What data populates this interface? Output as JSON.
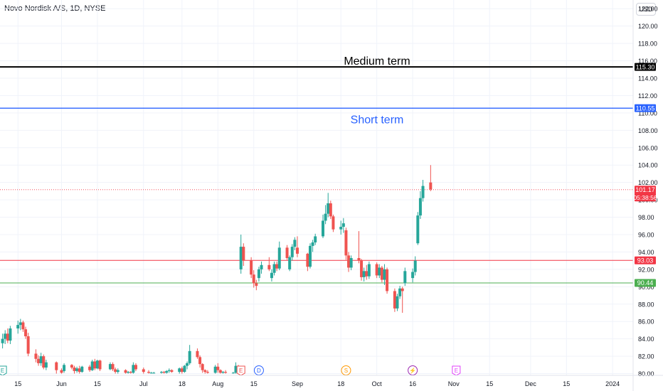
{
  "header": {
    "title": "Novo Nordisk A/S, 1D, NYSE",
    "currency_button": "USD"
  },
  "colors": {
    "up": "#26a69a",
    "down": "#ef5350",
    "grid": "#f0f3fa",
    "axis_text": "#131722",
    "medium": "#000000",
    "short": "#2962ff",
    "resistance": "#f23645",
    "support": "#4caf50"
  },
  "chart_data": {
    "type": "candlestick",
    "title": "Novo Nordisk A/S, 1D, NYSE",
    "currency": "USD",
    "ylim": [
      79.8,
      123.0
    ],
    "y_ticks": [
      "80.00",
      "82.00",
      "84.00",
      "86.00",
      "88.00",
      "90.00",
      "92.00",
      "94.00",
      "96.00",
      "98.00",
      "100.00",
      "102.00",
      "104.00",
      "106.00",
      "108.00",
      "110.00",
      "112.00",
      "114.00",
      "116.00",
      "118.00",
      "120.00",
      "122.00"
    ],
    "x_ticks": [
      {
        "label": "15",
        "date": "2023-05-15"
      },
      {
        "label": "Jun",
        "date": "2023-06-01"
      },
      {
        "label": "15",
        "date": "2023-06-15"
      },
      {
        "label": "Jul",
        "date": "2023-07-03"
      },
      {
        "label": "18",
        "date": "2023-07-18"
      },
      {
        "label": "Aug",
        "date": "2023-08-01"
      },
      {
        "label": "15",
        "date": "2023-08-15"
      },
      {
        "label": "Sep",
        "date": "2023-09-01"
      },
      {
        "label": "18",
        "date": "2023-09-18"
      },
      {
        "label": "Oct",
        "date": "2023-10-02"
      },
      {
        "label": "16",
        "date": "2023-10-16"
      },
      {
        "label": "Nov",
        "date": "2023-11-01"
      },
      {
        "label": "15",
        "date": "2023-11-15"
      },
      {
        "label": "Dec",
        "date": "2023-12-01"
      },
      {
        "label": "15",
        "date": "2023-12-15"
      },
      {
        "label": "2024",
        "date": "2024-01-02"
      }
    ],
    "candles": [
      {
        "d": "2023-05-09",
        "o": 83.5,
        "h": 84.6,
        "l": 82.9,
        "c": 84.0
      },
      {
        "d": "2023-05-10",
        "o": 84.0,
        "h": 85.0,
        "l": 83.4,
        "c": 84.6
      },
      {
        "d": "2023-05-11",
        "o": 84.6,
        "h": 85.2,
        "l": 83.5,
        "c": 83.8
      },
      {
        "d": "2023-05-12",
        "o": 83.8,
        "h": 85.5,
        "l": 83.4,
        "c": 85.2
      },
      {
        "d": "2023-05-15",
        "o": 85.2,
        "h": 86.1,
        "l": 84.6,
        "c": 85.6
      },
      {
        "d": "2023-05-16",
        "o": 85.6,
        "h": 86.3,
        "l": 85.0,
        "c": 85.9
      },
      {
        "d": "2023-05-17",
        "o": 85.9,
        "h": 86.1,
        "l": 84.8,
        "c": 85.1
      },
      {
        "d": "2023-05-18",
        "o": 85.1,
        "h": 85.4,
        "l": 84.0,
        "c": 84.3
      },
      {
        "d": "2023-05-19",
        "o": 84.3,
        "h": 84.7,
        "l": 82.0,
        "c": 82.3
      },
      {
        "d": "2023-05-22",
        "o": 82.3,
        "h": 82.8,
        "l": 81.3,
        "c": 81.7
      },
      {
        "d": "2023-05-23",
        "o": 81.7,
        "h": 82.1,
        "l": 80.9,
        "c": 81.2
      },
      {
        "d": "2023-05-24",
        "o": 81.2,
        "h": 82.4,
        "l": 80.9,
        "c": 82.0
      },
      {
        "d": "2023-05-25",
        "o": 82.0,
        "h": 82.2,
        "l": 80.5,
        "c": 80.7
      },
      {
        "d": "2023-05-26",
        "o": 80.7,
        "h": 81.6,
        "l": 80.4,
        "c": 81.3
      },
      {
        "d": "2023-05-30",
        "o": 81.3,
        "h": 81.4,
        "l": 80.0,
        "c": 80.4
      },
      {
        "d": "2023-06-01",
        "o": 80.4,
        "h": 80.6,
        "l": 80.0,
        "c": 80.1
      },
      {
        "d": "2023-06-02",
        "o": 80.3,
        "h": 81.2,
        "l": 80.1,
        "c": 81.0
      },
      {
        "d": "2023-06-05",
        "o": 81.0,
        "h": 81.1,
        "l": 80.5,
        "c": 80.7
      },
      {
        "d": "2023-06-06",
        "o": 80.7,
        "h": 80.9,
        "l": 80.0,
        "c": 80.3
      },
      {
        "d": "2023-06-07",
        "o": 80.3,
        "h": 80.8,
        "l": 80.1,
        "c": 80.6
      },
      {
        "d": "2023-06-08",
        "o": 80.6,
        "h": 80.9,
        "l": 80.0,
        "c": 80.2
      },
      {
        "d": "2023-06-09",
        "o": 80.2,
        "h": 80.9,
        "l": 80.1,
        "c": 80.8
      },
      {
        "d": "2023-06-12",
        "o": 80.8,
        "h": 81.0,
        "l": 80.2,
        "c": 80.4
      },
      {
        "d": "2023-06-13",
        "o": 80.4,
        "h": 81.6,
        "l": 80.3,
        "c": 81.4
      },
      {
        "d": "2023-06-14",
        "o": 81.4,
        "h": 81.7,
        "l": 80.4,
        "c": 80.6
      },
      {
        "d": "2023-06-15",
        "o": 80.6,
        "h": 81.6,
        "l": 80.5,
        "c": 81.5
      },
      {
        "d": "2023-06-16",
        "o": 81.5,
        "h": 81.6,
        "l": 80.3,
        "c": 80.5
      },
      {
        "d": "2023-06-20",
        "o": 80.5,
        "h": 81.3,
        "l": 80.4,
        "c": 81.1
      },
      {
        "d": "2023-06-21",
        "o": 81.1,
        "h": 81.3,
        "l": 80.3,
        "c": 80.5
      },
      {
        "d": "2023-06-22",
        "o": 80.5,
        "h": 80.7,
        "l": 80.0,
        "c": 80.2
      },
      {
        "d": "2023-06-23",
        "o": 80.2,
        "h": 80.6,
        "l": 80.0,
        "c": 80.4
      },
      {
        "d": "2023-06-26",
        "o": 80.4,
        "h": 80.5,
        "l": 80.0,
        "c": 80.1
      },
      {
        "d": "2023-06-27",
        "o": 80.1,
        "h": 80.3,
        "l": 80.0,
        "c": 80.2
      },
      {
        "d": "2023-06-28",
        "o": 80.2,
        "h": 80.3,
        "l": 80.0,
        "c": 80.1
      },
      {
        "d": "2023-06-29",
        "o": 80.1,
        "h": 81.3,
        "l": 80.0,
        "c": 81.0
      },
      {
        "d": "2023-06-30",
        "o": 81.0,
        "h": 81.2,
        "l": 80.3,
        "c": 80.5
      },
      {
        "d": "2023-07-03",
        "o": 80.5,
        "h": 80.7,
        "l": 80.0,
        "c": 80.2
      },
      {
        "d": "2023-07-05",
        "o": 80.2,
        "h": 80.4,
        "l": 80.0,
        "c": 80.1
      },
      {
        "d": "2023-07-06",
        "o": 80.1,
        "h": 80.2,
        "l": 80.0,
        "c": 80.1
      },
      {
        "d": "2023-07-07",
        "o": 80.1,
        "h": 80.2,
        "l": 80.0,
        "c": 80.1
      },
      {
        "d": "2023-07-10",
        "o": 80.1,
        "h": 80.3,
        "l": 80.0,
        "c": 80.2
      },
      {
        "d": "2023-07-11",
        "o": 80.2,
        "h": 80.3,
        "l": 80.0,
        "c": 80.1
      },
      {
        "d": "2023-07-12",
        "o": 80.1,
        "h": 80.4,
        "l": 80.0,
        "c": 80.3
      },
      {
        "d": "2023-07-13",
        "o": 80.3,
        "h": 80.6,
        "l": 80.1,
        "c": 80.4
      },
      {
        "d": "2023-07-14",
        "o": 80.4,
        "h": 80.5,
        "l": 80.1,
        "c": 80.2
      },
      {
        "d": "2023-07-17",
        "o": 80.2,
        "h": 80.7,
        "l": 80.0,
        "c": 80.6
      },
      {
        "d": "2023-07-18",
        "o": 80.6,
        "h": 80.8,
        "l": 80.0,
        "c": 80.2
      },
      {
        "d": "2023-07-19",
        "o": 80.2,
        "h": 81.0,
        "l": 80.1,
        "c": 80.9
      },
      {
        "d": "2023-07-20",
        "o": 80.9,
        "h": 81.4,
        "l": 80.5,
        "c": 81.2
      },
      {
        "d": "2023-07-21",
        "o": 81.2,
        "h": 83.3,
        "l": 81.0,
        "c": 82.6
      },
      {
        "d": "2023-07-24",
        "o": 82.6,
        "h": 82.9,
        "l": 81.7,
        "c": 81.9
      },
      {
        "d": "2023-07-25",
        "o": 81.9,
        "h": 82.1,
        "l": 80.7,
        "c": 81.1
      },
      {
        "d": "2023-07-26",
        "o": 81.1,
        "h": 81.2,
        "l": 80.1,
        "c": 80.4
      },
      {
        "d": "2023-07-27",
        "o": 80.4,
        "h": 80.5,
        "l": 80.0,
        "c": 80.2
      },
      {
        "d": "2023-07-28",
        "o": 80.2,
        "h": 80.4,
        "l": 80.0,
        "c": 80.1
      },
      {
        "d": "2023-07-31",
        "o": 80.1,
        "h": 81.0,
        "l": 80.0,
        "c": 80.8
      },
      {
        "d": "2023-08-01",
        "o": 80.8,
        "h": 81.2,
        "l": 80.1,
        "c": 80.4
      },
      {
        "d": "2023-08-02",
        "o": 80.4,
        "h": 80.5,
        "l": 80.0,
        "c": 80.1
      },
      {
        "d": "2023-08-03",
        "o": 80.1,
        "h": 80.3,
        "l": 80.0,
        "c": 80.2
      },
      {
        "d": "2023-08-04",
        "o": 80.2,
        "h": 80.4,
        "l": 80.0,
        "c": 80.1
      },
      {
        "d": "2023-08-07",
        "o": 80.1,
        "h": 80.2,
        "l": 80.0,
        "c": 80.1
      },
      {
        "d": "2023-08-08",
        "o": 80.1,
        "h": 81.3,
        "l": 80.0,
        "c": 80.9
      },
      {
        "d": "2023-08-09",
        "o": 80.9,
        "h": 81.0,
        "l": 80.0,
        "c": 80.3
      },
      {
        "d": "2023-08-10",
        "o": 92.0,
        "h": 96.0,
        "l": 91.5,
        "c": 94.6
      },
      {
        "d": "2023-08-11",
        "o": 94.6,
        "h": 95.0,
        "l": 92.4,
        "c": 93.0
      },
      {
        "d": "2023-08-14",
        "o": 93.0,
        "h": 93.4,
        "l": 91.0,
        "c": 91.4
      },
      {
        "d": "2023-08-15",
        "o": 91.4,
        "h": 91.9,
        "l": 89.9,
        "c": 90.4
      },
      {
        "d": "2023-08-16",
        "o": 90.4,
        "h": 90.8,
        "l": 89.6,
        "c": 90.1
      },
      {
        "d": "2023-08-17",
        "o": 91.0,
        "h": 92.3,
        "l": 90.6,
        "c": 92.0
      },
      {
        "d": "2023-08-18",
        "o": 92.0,
        "h": 92.9,
        "l": 91.5,
        "c": 92.5
      },
      {
        "d": "2023-08-21",
        "o": 92.5,
        "h": 93.4,
        "l": 91.8,
        "c": 92.0
      },
      {
        "d": "2023-08-22",
        "o": 91.0,
        "h": 92.0,
        "l": 90.6,
        "c": 91.6
      },
      {
        "d": "2023-08-23",
        "o": 91.6,
        "h": 92.9,
        "l": 91.3,
        "c": 92.6
      },
      {
        "d": "2023-08-24",
        "o": 92.6,
        "h": 92.9,
        "l": 91.8,
        "c": 92.1
      },
      {
        "d": "2023-08-25",
        "o": 92.1,
        "h": 95.2,
        "l": 91.9,
        "c": 94.5
      },
      {
        "d": "2023-08-28",
        "o": 94.5,
        "h": 94.8,
        "l": 93.1,
        "c": 93.3
      },
      {
        "d": "2023-08-29",
        "o": 92.0,
        "h": 93.6,
        "l": 91.8,
        "c": 93.4
      },
      {
        "d": "2023-08-30",
        "o": 93.4,
        "h": 94.9,
        "l": 93.0,
        "c": 94.6
      },
      {
        "d": "2023-08-31",
        "o": 94.6,
        "h": 95.7,
        "l": 94.2,
        "c": 95.4
      },
      {
        "d": "2023-09-01",
        "o": 94.5,
        "h": 95.8,
        "l": 93.4,
        "c": 93.8
      },
      {
        "d": "2023-09-05",
        "o": 93.8,
        "h": 93.9,
        "l": 91.8,
        "c": 92.3
      },
      {
        "d": "2023-09-06",
        "o": 92.3,
        "h": 95.0,
        "l": 92.1,
        "c": 94.7
      },
      {
        "d": "2023-09-07",
        "o": 94.7,
        "h": 95.4,
        "l": 94.0,
        "c": 95.1
      },
      {
        "d": "2023-09-08",
        "o": 95.1,
        "h": 96.1,
        "l": 94.8,
        "c": 95.8
      },
      {
        "d": "2023-09-11",
        "o": 95.8,
        "h": 98.3,
        "l": 95.6,
        "c": 97.6
      },
      {
        "d": "2023-09-12",
        "o": 97.6,
        "h": 99.4,
        "l": 97.2,
        "c": 98.4
      },
      {
        "d": "2023-09-13",
        "o": 98.4,
        "h": 100.8,
        "l": 98.0,
        "c": 99.6
      },
      {
        "d": "2023-09-14",
        "o": 99.6,
        "h": 99.9,
        "l": 97.8,
        "c": 98.1
      },
      {
        "d": "2023-09-15",
        "o": 98.1,
        "h": 98.3,
        "l": 96.3,
        "c": 96.6
      },
      {
        "d": "2023-09-18",
        "o": 96.6,
        "h": 97.6,
        "l": 96.0,
        "c": 96.9
      },
      {
        "d": "2023-09-19",
        "o": 96.9,
        "h": 97.9,
        "l": 96.2,
        "c": 97.3
      },
      {
        "d": "2023-09-20",
        "o": 96.5,
        "h": 96.8,
        "l": 93.1,
        "c": 93.6
      },
      {
        "d": "2023-09-21",
        "o": 93.6,
        "h": 94.0,
        "l": 91.7,
        "c": 92.2
      },
      {
        "d": "2023-09-22",
        "o": 92.2,
        "h": 93.6,
        "l": 91.9,
        "c": 93.3
      },
      {
        "d": "2023-09-25",
        "o": 93.3,
        "h": 96.4,
        "l": 92.7,
        "c": 93.0
      },
      {
        "d": "2023-09-26",
        "o": 93.0,
        "h": 93.2,
        "l": 90.7,
        "c": 91.1
      },
      {
        "d": "2023-09-27",
        "o": 91.1,
        "h": 92.2,
        "l": 90.6,
        "c": 91.8
      },
      {
        "d": "2023-09-28",
        "o": 91.8,
        "h": 92.5,
        "l": 90.8,
        "c": 91.2
      },
      {
        "d": "2023-09-29",
        "o": 91.2,
        "h": 92.9,
        "l": 90.9,
        "c": 92.6
      },
      {
        "d": "2023-10-02",
        "o": 92.6,
        "h": 92.8,
        "l": 91.0,
        "c": 91.3
      },
      {
        "d": "2023-10-03",
        "o": 91.3,
        "h": 92.6,
        "l": 91.0,
        "c": 92.2
      },
      {
        "d": "2023-10-04",
        "o": 92.2,
        "h": 92.4,
        "l": 90.5,
        "c": 90.8
      },
      {
        "d": "2023-10-05",
        "o": 90.8,
        "h": 92.6,
        "l": 90.2,
        "c": 92.0
      },
      {
        "d": "2023-10-06",
        "o": 92.0,
        "h": 92.2,
        "l": 89.2,
        "c": 89.5
      },
      {
        "d": "2023-10-09",
        "o": 89.5,
        "h": 89.8,
        "l": 87.1,
        "c": 87.5
      },
      {
        "d": "2023-10-10",
        "o": 87.5,
        "h": 89.2,
        "l": 87.2,
        "c": 88.9
      },
      {
        "d": "2023-10-11",
        "o": 88.9,
        "h": 90.1,
        "l": 88.6,
        "c": 89.8
      },
      {
        "d": "2023-10-12",
        "o": 89.8,
        "h": 90.0,
        "l": 87.0,
        "c": 89.5
      },
      {
        "d": "2023-10-13",
        "o": 90.4,
        "h": 92.2,
        "l": 90.1,
        "c": 91.8
      },
      {
        "d": "2023-10-16",
        "o": 91.0,
        "h": 92.1,
        "l": 90.5,
        "c": 91.7
      },
      {
        "d": "2023-10-17",
        "o": 91.7,
        "h": 93.5,
        "l": 91.3,
        "c": 93.0
      },
      {
        "d": "2023-10-18",
        "o": 95.0,
        "h": 98.6,
        "l": 94.8,
        "c": 98.2
      },
      {
        "d": "2023-10-19",
        "o": 98.2,
        "h": 101.0,
        "l": 97.8,
        "c": 100.2
      },
      {
        "d": "2023-10-20",
        "o": 100.2,
        "h": 102.3,
        "l": 99.8,
        "c": 101.6
      },
      {
        "d": "2023-10-23",
        "o": 102.0,
        "h": 104.0,
        "l": 101.0,
        "c": 101.2
      }
    ],
    "horizontal_lines": [
      {
        "name": "Medium term",
        "value": 115.3,
        "label": "115.30",
        "color": "#000000",
        "width": 2,
        "dash": ""
      },
      {
        "name": "Short term",
        "value": 110.55,
        "label": "110.55",
        "color": "#2962ff",
        "width": 1.4,
        "dash": ""
      },
      {
        "name": "",
        "value": 93.03,
        "label": "93.03",
        "color": "#f23645",
        "width": 1,
        "dash": ""
      },
      {
        "name": "",
        "value": 90.44,
        "label": "90.44",
        "color": "#4caf50",
        "width": 1,
        "dash": ""
      },
      {
        "name": "",
        "value": 101.17,
        "label": "101.17",
        "color": "#f23645",
        "width": 0.8,
        "dash": "1,2"
      }
    ],
    "annotations": [
      {
        "text": "Medium term",
        "value": 116.05,
        "color": "#000000"
      },
      {
        "text": "Short term",
        "value": 109.3,
        "color": "#2962ff"
      }
    ],
    "last_price": {
      "value": 101.17,
      "label": "101.17",
      "countdown": "05:38:56"
    },
    "events": [
      {
        "date": "2023-05-09",
        "letter": "E",
        "kind": "earnings-past"
      },
      {
        "date": "2023-08-10",
        "letter": "E",
        "kind": "earnings"
      },
      {
        "date": "2023-08-17",
        "letter": "D",
        "kind": "dividend"
      },
      {
        "date": "2023-09-20",
        "letter": "S",
        "kind": "split"
      },
      {
        "date": "2023-10-16",
        "letter": "⚡",
        "kind": "news"
      },
      {
        "date": "2023-11-02",
        "letter": "E",
        "kind": "earnings-upcoming"
      }
    ],
    "grid": true
  }
}
